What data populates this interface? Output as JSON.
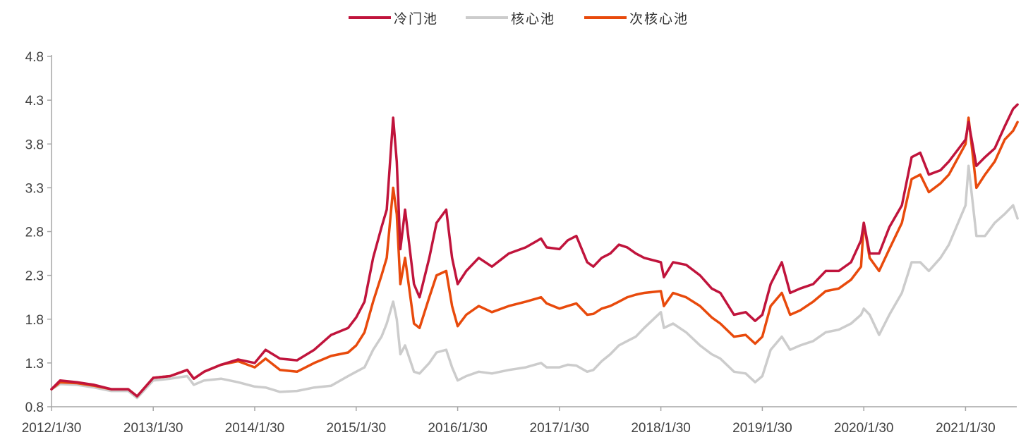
{
  "chart_data": {
    "type": "line",
    "title": "",
    "xlabel": "",
    "ylabel": "",
    "ylim": [
      0.8,
      4.8
    ],
    "yticks": [
      "0.8",
      "1.3",
      "1.8",
      "2.3",
      "2.8",
      "3.3",
      "3.8",
      "4.3",
      "4.8"
    ],
    "xticks": [
      "2012/1/30",
      "2013/1/30",
      "2014/1/30",
      "2015/1/30",
      "2016/1/30",
      "2017/1/30",
      "2018/1/30",
      "2019/1/30",
      "2020/1/30",
      "2021/1/30"
    ],
    "legend_position": "top-center",
    "grid": false,
    "series": [
      {
        "name": "冷门池",
        "color": "#c0143c",
        "points": [
          [
            "2012/1/30",
            1.0
          ],
          [
            "2012/3/1",
            1.1
          ],
          [
            "2012/5/1",
            1.08
          ],
          [
            "2012/7/1",
            1.05
          ],
          [
            "2012/9/1",
            1.0
          ],
          [
            "2012/11/1",
            1.0
          ],
          [
            "2012/12/3",
            0.92
          ],
          [
            "2013/1/30",
            1.13
          ],
          [
            "2013/4/1",
            1.15
          ],
          [
            "2013/6/1",
            1.22
          ],
          [
            "2013/6/25",
            1.12
          ],
          [
            "2013/8/1",
            1.2
          ],
          [
            "2013/10/1",
            1.28
          ],
          [
            "2013/12/1",
            1.34
          ],
          [
            "2014/1/30",
            1.3
          ],
          [
            "2014/3/10",
            1.45
          ],
          [
            "2014/5/1",
            1.35
          ],
          [
            "2014/7/1",
            1.33
          ],
          [
            "2014/9/1",
            1.45
          ],
          [
            "2014/11/1",
            1.62
          ],
          [
            "2015/1/1",
            1.7
          ],
          [
            "2015/1/30",
            1.82
          ],
          [
            "2015/3/1",
            2.0
          ],
          [
            "2015/4/1",
            2.5
          ],
          [
            "2015/5/1",
            2.85
          ],
          [
            "2015/5/20",
            3.05
          ],
          [
            "2015/6/12",
            4.1
          ],
          [
            "2015/6/25",
            3.6
          ],
          [
            "2015/7/8",
            2.6
          ],
          [
            "2015/7/25",
            3.05
          ],
          [
            "2015/8/26",
            2.2
          ],
          [
            "2015/9/15",
            2.05
          ],
          [
            "2015/10/20",
            2.5
          ],
          [
            "2015/11/15",
            2.9
          ],
          [
            "2015/12/20",
            3.05
          ],
          [
            "2016/1/10",
            2.5
          ],
          [
            "2016/1/30",
            2.2
          ],
          [
            "2016/3/1",
            2.35
          ],
          [
            "2016/4/15",
            2.5
          ],
          [
            "2016/6/1",
            2.4
          ],
          [
            "2016/8/1",
            2.55
          ],
          [
            "2016/10/1",
            2.62
          ],
          [
            "2016/11/25",
            2.72
          ],
          [
            "2016/12/15",
            2.62
          ],
          [
            "2017/1/30",
            2.6
          ],
          [
            "2017/3/1",
            2.7
          ],
          [
            "2017/4/1",
            2.75
          ],
          [
            "2017/5/10",
            2.45
          ],
          [
            "2017/6/1",
            2.4
          ],
          [
            "2017/7/1",
            2.5
          ],
          [
            "2017/8/1",
            2.55
          ],
          [
            "2017/9/1",
            2.65
          ],
          [
            "2017/10/1",
            2.62
          ],
          [
            "2017/11/1",
            2.55
          ],
          [
            "2017/12/1",
            2.5
          ],
          [
            "2018/1/30",
            2.45
          ],
          [
            "2018/2/10",
            2.28
          ],
          [
            "2018/3/15",
            2.45
          ],
          [
            "2018/5/1",
            2.42
          ],
          [
            "2018/6/20",
            2.3
          ],
          [
            "2018/8/1",
            2.15
          ],
          [
            "2018/9/1",
            2.1
          ],
          [
            "2018/10/20",
            1.85
          ],
          [
            "2018/12/1",
            1.88
          ],
          [
            "2019/1/4",
            1.78
          ],
          [
            "2019/1/30",
            1.85
          ],
          [
            "2019/3/1",
            2.2
          ],
          [
            "2019/4/10",
            2.45
          ],
          [
            "2019/5/10",
            2.1
          ],
          [
            "2019/6/15",
            2.15
          ],
          [
            "2019/8/1",
            2.2
          ],
          [
            "2019/9/15",
            2.35
          ],
          [
            "2019/11/1",
            2.35
          ],
          [
            "2019/12/15",
            2.45
          ],
          [
            "2020/1/20",
            2.7
          ],
          [
            "2020/1/30",
            2.9
          ],
          [
            "2020/2/20",
            2.55
          ],
          [
            "2020/3/25",
            2.55
          ],
          [
            "2020/5/1",
            2.85
          ],
          [
            "2020/6/15",
            3.1
          ],
          [
            "2020/7/20",
            3.65
          ],
          [
            "2020/8/20",
            3.7
          ],
          [
            "2020/9/20",
            3.45
          ],
          [
            "2020/11/1",
            3.5
          ],
          [
            "2020/12/1",
            3.6
          ],
          [
            "2021/1/30",
            3.85
          ],
          [
            "2021/2/10",
            4.05
          ],
          [
            "2021/3/10",
            3.55
          ],
          [
            "2021/4/10",
            3.65
          ],
          [
            "2021/5/15",
            3.75
          ],
          [
            "2021/6/20",
            4.0
          ],
          [
            "2021/7/20",
            4.2
          ],
          [
            "2021/8/5",
            4.25
          ]
        ]
      },
      {
        "name": "核心池",
        "color": "#cccccc",
        "points": [
          [
            "2012/1/30",
            1.0
          ],
          [
            "2012/3/1",
            1.06
          ],
          [
            "2012/5/1",
            1.05
          ],
          [
            "2012/7/1",
            1.02
          ],
          [
            "2012/9/1",
            0.98
          ],
          [
            "2012/11/1",
            0.98
          ],
          [
            "2012/12/3",
            0.9
          ],
          [
            "2013/1/30",
            1.1
          ],
          [
            "2013/4/1",
            1.12
          ],
          [
            "2013/6/1",
            1.15
          ],
          [
            "2013/6/25",
            1.05
          ],
          [
            "2013/8/1",
            1.1
          ],
          [
            "2013/10/1",
            1.12
          ],
          [
            "2013/12/1",
            1.08
          ],
          [
            "2014/1/30",
            1.03
          ],
          [
            "2014/3/10",
            1.02
          ],
          [
            "2014/5/1",
            0.97
          ],
          [
            "2014/7/1",
            0.98
          ],
          [
            "2014/9/1",
            1.02
          ],
          [
            "2014/11/1",
            1.04
          ],
          [
            "2015/1/1",
            1.15
          ],
          [
            "2015/1/30",
            1.2
          ],
          [
            "2015/3/1",
            1.25
          ],
          [
            "2015/4/1",
            1.45
          ],
          [
            "2015/5/1",
            1.6
          ],
          [
            "2015/5/20",
            1.75
          ],
          [
            "2015/6/12",
            2.0
          ],
          [
            "2015/6/25",
            1.8
          ],
          [
            "2015/7/8",
            1.4
          ],
          [
            "2015/7/25",
            1.5
          ],
          [
            "2015/8/26",
            1.2
          ],
          [
            "2015/9/15",
            1.18
          ],
          [
            "2015/10/20",
            1.3
          ],
          [
            "2015/11/15",
            1.42
          ],
          [
            "2015/12/20",
            1.45
          ],
          [
            "2016/1/10",
            1.25
          ],
          [
            "2016/1/30",
            1.1
          ],
          [
            "2016/3/1",
            1.15
          ],
          [
            "2016/4/15",
            1.2
          ],
          [
            "2016/6/1",
            1.18
          ],
          [
            "2016/8/1",
            1.22
          ],
          [
            "2016/10/1",
            1.25
          ],
          [
            "2016/11/25",
            1.3
          ],
          [
            "2016/12/15",
            1.25
          ],
          [
            "2017/1/30",
            1.25
          ],
          [
            "2017/3/1",
            1.28
          ],
          [
            "2017/4/1",
            1.27
          ],
          [
            "2017/5/10",
            1.2
          ],
          [
            "2017/6/1",
            1.22
          ],
          [
            "2017/7/1",
            1.32
          ],
          [
            "2017/8/1",
            1.4
          ],
          [
            "2017/9/1",
            1.5
          ],
          [
            "2017/10/1",
            1.55
          ],
          [
            "2017/11/1",
            1.6
          ],
          [
            "2017/12/1",
            1.7
          ],
          [
            "2018/1/30",
            1.88
          ],
          [
            "2018/2/10",
            1.7
          ],
          [
            "2018/3/15",
            1.75
          ],
          [
            "2018/5/1",
            1.65
          ],
          [
            "2018/6/20",
            1.5
          ],
          [
            "2018/8/1",
            1.4
          ],
          [
            "2018/9/1",
            1.35
          ],
          [
            "2018/10/20",
            1.2
          ],
          [
            "2018/12/1",
            1.18
          ],
          [
            "2019/1/4",
            1.08
          ],
          [
            "2019/1/30",
            1.15
          ],
          [
            "2019/3/1",
            1.45
          ],
          [
            "2019/4/10",
            1.6
          ],
          [
            "2019/5/10",
            1.45
          ],
          [
            "2019/6/15",
            1.5
          ],
          [
            "2019/8/1",
            1.55
          ],
          [
            "2019/9/15",
            1.65
          ],
          [
            "2019/11/1",
            1.68
          ],
          [
            "2019/12/15",
            1.75
          ],
          [
            "2020/1/20",
            1.85
          ],
          [
            "2020/1/30",
            1.92
          ],
          [
            "2020/2/20",
            1.85
          ],
          [
            "2020/3/25",
            1.62
          ],
          [
            "2020/5/1",
            1.85
          ],
          [
            "2020/6/15",
            2.1
          ],
          [
            "2020/7/20",
            2.45
          ],
          [
            "2020/8/20",
            2.45
          ],
          [
            "2020/9/20",
            2.35
          ],
          [
            "2020/11/1",
            2.5
          ],
          [
            "2020/12/1",
            2.65
          ],
          [
            "2021/1/30",
            3.1
          ],
          [
            "2021/2/10",
            3.55
          ],
          [
            "2021/3/10",
            2.75
          ],
          [
            "2021/4/10",
            2.75
          ],
          [
            "2021/5/15",
            2.9
          ],
          [
            "2021/6/20",
            3.0
          ],
          [
            "2021/7/20",
            3.1
          ],
          [
            "2021/8/5",
            2.95
          ]
        ]
      },
      {
        "name": "次核心池",
        "color": "#e84a0c",
        "points": [
          [
            "2012/1/30",
            1.0
          ],
          [
            "2012/3/1",
            1.08
          ],
          [
            "2012/5/1",
            1.07
          ],
          [
            "2012/7/1",
            1.04
          ],
          [
            "2012/9/1",
            1.0
          ],
          [
            "2012/11/1",
            1.0
          ],
          [
            "2012/12/3",
            0.92
          ],
          [
            "2013/1/30",
            1.13
          ],
          [
            "2013/4/1",
            1.15
          ],
          [
            "2013/6/1",
            1.22
          ],
          [
            "2013/6/25",
            1.12
          ],
          [
            "2013/8/1",
            1.2
          ],
          [
            "2013/10/1",
            1.28
          ],
          [
            "2013/12/1",
            1.32
          ],
          [
            "2014/1/30",
            1.25
          ],
          [
            "2014/3/10",
            1.35
          ],
          [
            "2014/5/1",
            1.22
          ],
          [
            "2014/7/1",
            1.2
          ],
          [
            "2014/9/1",
            1.3
          ],
          [
            "2014/11/1",
            1.38
          ],
          [
            "2015/1/1",
            1.42
          ],
          [
            "2015/1/30",
            1.5
          ],
          [
            "2015/3/1",
            1.65
          ],
          [
            "2015/4/1",
            2.0
          ],
          [
            "2015/5/1",
            2.3
          ],
          [
            "2015/5/20",
            2.5
          ],
          [
            "2015/6/12",
            3.3
          ],
          [
            "2015/6/25",
            3.0
          ],
          [
            "2015/7/8",
            2.2
          ],
          [
            "2015/7/25",
            2.5
          ],
          [
            "2015/8/26",
            1.75
          ],
          [
            "2015/9/15",
            1.7
          ],
          [
            "2015/10/20",
            2.05
          ],
          [
            "2015/11/15",
            2.3
          ],
          [
            "2015/12/20",
            2.35
          ],
          [
            "2016/1/10",
            1.95
          ],
          [
            "2016/1/30",
            1.72
          ],
          [
            "2016/3/1",
            1.85
          ],
          [
            "2016/4/15",
            1.95
          ],
          [
            "2016/6/1",
            1.88
          ],
          [
            "2016/8/1",
            1.95
          ],
          [
            "2016/10/1",
            2.0
          ],
          [
            "2016/11/25",
            2.05
          ],
          [
            "2016/12/15",
            1.98
          ],
          [
            "2017/1/30",
            1.92
          ],
          [
            "2017/3/1",
            1.95
          ],
          [
            "2017/4/1",
            1.98
          ],
          [
            "2017/5/10",
            1.85
          ],
          [
            "2017/6/1",
            1.86
          ],
          [
            "2017/7/1",
            1.92
          ],
          [
            "2017/8/1",
            1.95
          ],
          [
            "2017/9/1",
            2.0
          ],
          [
            "2017/10/1",
            2.05
          ],
          [
            "2017/11/1",
            2.08
          ],
          [
            "2017/12/1",
            2.1
          ],
          [
            "2018/1/30",
            2.12
          ],
          [
            "2018/2/10",
            1.95
          ],
          [
            "2018/3/15",
            2.1
          ],
          [
            "2018/5/1",
            2.05
          ],
          [
            "2018/6/20",
            1.95
          ],
          [
            "2018/8/1",
            1.82
          ],
          [
            "2018/9/1",
            1.75
          ],
          [
            "2018/10/20",
            1.6
          ],
          [
            "2018/12/1",
            1.62
          ],
          [
            "2019/1/4",
            1.52
          ],
          [
            "2019/1/30",
            1.6
          ],
          [
            "2019/3/1",
            1.95
          ],
          [
            "2019/4/10",
            2.1
          ],
          [
            "2019/5/10",
            1.85
          ],
          [
            "2019/6/15",
            1.9
          ],
          [
            "2019/8/1",
            2.0
          ],
          [
            "2019/9/15",
            2.12
          ],
          [
            "2019/11/1",
            2.15
          ],
          [
            "2019/12/15",
            2.25
          ],
          [
            "2020/1/20",
            2.4
          ],
          [
            "2020/1/30",
            2.9
          ],
          [
            "2020/2/20",
            2.5
          ],
          [
            "2020/3/25",
            2.35
          ],
          [
            "2020/5/1",
            2.6
          ],
          [
            "2020/6/15",
            2.9
          ],
          [
            "2020/7/20",
            3.4
          ],
          [
            "2020/8/20",
            3.45
          ],
          [
            "2020/9/20",
            3.25
          ],
          [
            "2020/11/1",
            3.35
          ],
          [
            "2020/12/1",
            3.45
          ],
          [
            "2021/1/30",
            3.8
          ],
          [
            "2021/2/10",
            4.1
          ],
          [
            "2021/3/10",
            3.3
          ],
          [
            "2021/4/10",
            3.45
          ],
          [
            "2021/5/15",
            3.6
          ],
          [
            "2021/6/20",
            3.85
          ],
          [
            "2021/7/20",
            3.95
          ],
          [
            "2021/8/5",
            4.05
          ]
        ]
      }
    ]
  }
}
